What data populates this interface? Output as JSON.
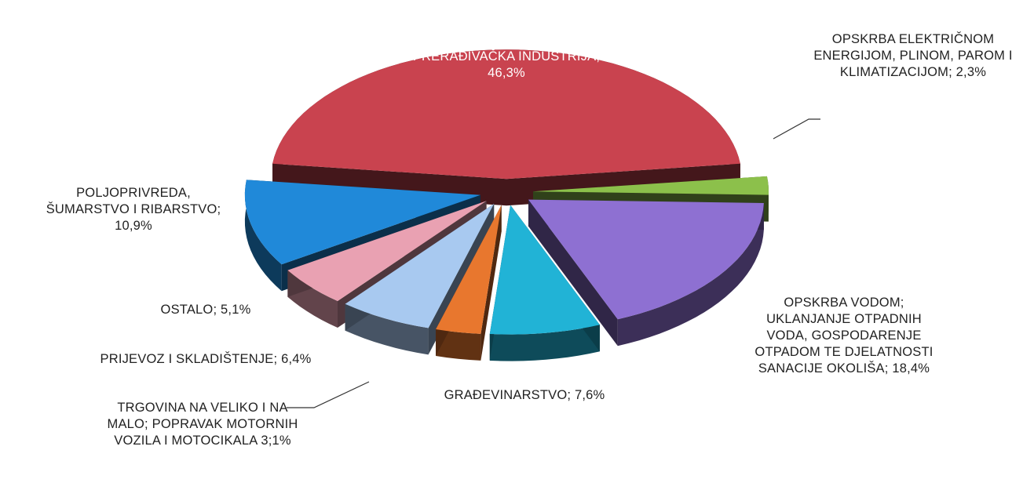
{
  "chart_data": {
    "type": "pie",
    "categories": [
      "PRERAĐIVAČKA INDUSTRIJA;",
      "OPSKRBA ELEKTRIČNOM ENERGIJOM, PLINOM, PAROM I KLIMATIZACIJOM;",
      "OPSKRBA VODOM; UKLANJANJE OTPADNIH VODA, GOSPODARENJE OTPADOM TE DJELATNOSTI SANACIJE OKOLIŠA;",
      "GRAĐEVINARSTVO;",
      "TRGOVINA NA VELIKO I NA MALO; POPRAVAK MOTORNIH VOZILA I MOTOCIKALA",
      "PRIJEVOZ I SKLADIŠTENJE;",
      "OSTALO;",
      "POLJOPRIVREDA, ŠUMARSTVO I RIBARSTVO;"
    ],
    "values": [
      46.3,
      2.3,
      18.4,
      7.6,
      3.1,
      6.4,
      5.1,
      10.9
    ],
    "value_labels": [
      "46,3%",
      "2,3%",
      "18,4%",
      "7,6%",
      "3;1%",
      "6,4%",
      "5,1%",
      "10,9%"
    ],
    "colors": [
      "#c9434f",
      "#8cc04b",
      "#8e70d2",
      "#21b3d6",
      "#e8772e",
      "#a8c9f0",
      "#e9a1b2",
      "#2089d9"
    ]
  }
}
